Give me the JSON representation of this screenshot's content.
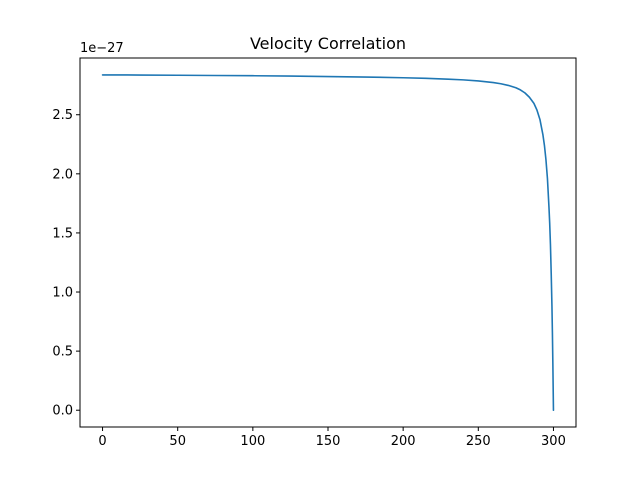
{
  "chart_data": {
    "type": "line",
    "title": "Velocity Correlation",
    "xlabel": "",
    "ylabel": "",
    "y_offset_label": "1e−27",
    "xlim": [
      -15,
      315
    ],
    "ylim": [
      -0.142,
      2.98
    ],
    "x_ticks": [
      0,
      50,
      100,
      150,
      200,
      250,
      300
    ],
    "x_tick_labels": [
      "0",
      "50",
      "100",
      "150",
      "200",
      "250",
      "300"
    ],
    "y_ticks": [
      0.0,
      0.5,
      1.0,
      1.5,
      2.0,
      2.5
    ],
    "y_tick_labels": [
      "0.0",
      "0.5",
      "1.0",
      "1.5",
      "2.0",
      "2.5"
    ],
    "grid": false,
    "legend": "none",
    "line_color": "#1f77b4",
    "series": [
      {
        "x": [
          0,
          25,
          50,
          75,
          100,
          125,
          150,
          175,
          200,
          215,
          230,
          240,
          250,
          260,
          265,
          270,
          275,
          278,
          281,
          284,
          287,
          289,
          291,
          293,
          294,
          295,
          296,
          297,
          297.5,
          298,
          298.5,
          299,
          299.3,
          299.6,
          299.8,
          300
        ],
        "y": [
          2.837,
          2.836,
          2.834,
          2.832,
          2.83,
          2.827,
          2.823,
          2.819,
          2.813,
          2.808,
          2.801,
          2.795,
          2.786,
          2.772,
          2.762,
          2.748,
          2.728,
          2.71,
          2.685,
          2.648,
          2.596,
          2.54,
          2.46,
          2.33,
          2.24,
          2.12,
          1.96,
          1.72,
          1.58,
          1.4,
          1.16,
          0.88,
          0.66,
          0.4,
          0.2,
          0.0
        ]
      }
    ]
  }
}
